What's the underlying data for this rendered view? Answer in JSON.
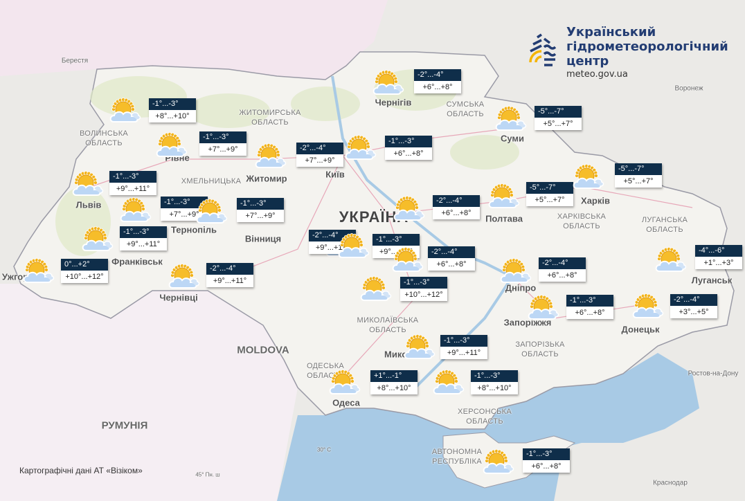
{
  "logo": {
    "title_line1": "Український",
    "title_line2": "гідрометеорологічний",
    "title_line3": "центр",
    "url": "meteo.gov.ua",
    "colors": {
      "navy": "#233d73",
      "yellow": "#f5b400"
    }
  },
  "credit": "Картографічні дані АТ «Візіком»",
  "map_labels": {
    "countries": [
      "УКРАЇНА",
      "РУМУНІЯ",
      "MOLDOVA"
    ],
    "cities": [
      "Берестя",
      "Чернігів",
      "Суми",
      "Воронеж",
      "Київ",
      "Житомир",
      "Рівне",
      "Львів",
      "Тернопіль",
      "Вінниця",
      "Франківськ",
      "Ужгород",
      "Чернівці",
      "Полтава",
      "Харків",
      "Дніпро",
      "Запоріжжя",
      "Донецьк",
      "Луганськ",
      "Одеса",
      "Миколаїв",
      "Ростов-на-Дону",
      "Краснодар"
    ],
    "regions": [
      "СУМСЬКА ОБЛАСТЬ",
      "ХАРКІВСЬКА ОБЛАСТЬ",
      "ЛУГАНСЬКА ОБЛАСТЬ",
      "ЗАПОРІЗЬКА ОБЛАСТЬ",
      "МИКОЛАЇВСЬКА ОБЛАСТЬ",
      "ОДЕСЬКА ОБЛАСТЬ",
      "ХЕРСОНСЬКА ОБЛАСТЬ",
      "ЖИТОМИРСЬКА ОБЛАСТЬ",
      "ВОЛИНСЬКА ОБЛАСТЬ",
      "ХМЕЛЬНИЦЬКА",
      "АВТОНОМНА РЕСПУБЛІКА"
    ],
    "misc": [
      "45° Пн. ш",
      "30° С"
    ]
  },
  "forecast_icon": "sun-behind-cloud",
  "colors": {
    "night_bg": "#0f2e4a",
    "sea": "#a8cae5",
    "land": "#f4f3ef"
  },
  "forecasts": [
    {
      "night": "-1°...-3°",
      "day": "+8°...+10°"
    },
    {
      "night": "-1°...-3°",
      "day": "+7°...+9°"
    },
    {
      "night": "-2°...-4°",
      "day": "+7°...+9°"
    },
    {
      "night": "-1°...-3°",
      "day": "+6°...+8°"
    },
    {
      "night": "-2°...-4°",
      "day": "+6°...+8°"
    },
    {
      "night": "-5°...-7°",
      "day": "+5°...+7°"
    },
    {
      "night": "-1°...-3°",
      "day": "+9°...+11°"
    },
    {
      "night": "-1°...-3°",
      "day": "+7°...+9°"
    },
    {
      "night": "-1°...-3°",
      "day": "+7°...+9°"
    },
    {
      "night": "-1°...-3°",
      "day": "+9°...+11°"
    },
    {
      "night": "0°...+2°",
      "day": "+10°...+12°"
    },
    {
      "night": "-2°...-4°",
      "day": "+9°...+11°"
    },
    {
      "night": "-2°...-4°",
      "day": "+9°...+11°"
    },
    {
      "night": "-2°...-4°",
      "day": "+6°...+8°"
    },
    {
      "night": "-5°...-7°",
      "day": "+5°...+7°"
    },
    {
      "night": "-5°...-7°",
      "day": "+5°...+7°"
    },
    {
      "night": "-1°...-3°",
      "day": "+9°...+11°"
    },
    {
      "night": "-2°...-4°",
      "day": "+6°...+8°"
    },
    {
      "night": "-1°...-3°",
      "day": "+10°...+12°"
    },
    {
      "night": "-2°...-4°",
      "day": "+6°...+8°"
    },
    {
      "night": "-4°...-6°",
      "day": "+1°...+3°"
    },
    {
      "night": "-1°...-3°",
      "day": "+6°...+8°"
    },
    {
      "night": "-2°...-4°",
      "day": "+3°...+5°"
    },
    {
      "night": "-1°...-3°",
      "day": "+9°...+11°"
    },
    {
      "night": "+1°...-1°",
      "day": "+8°...+10°"
    },
    {
      "night": "-1°...-3°",
      "day": "+8°...+10°"
    },
    {
      "night": "-1°...-3°",
      "day": "+6°...+8°"
    }
  ]
}
